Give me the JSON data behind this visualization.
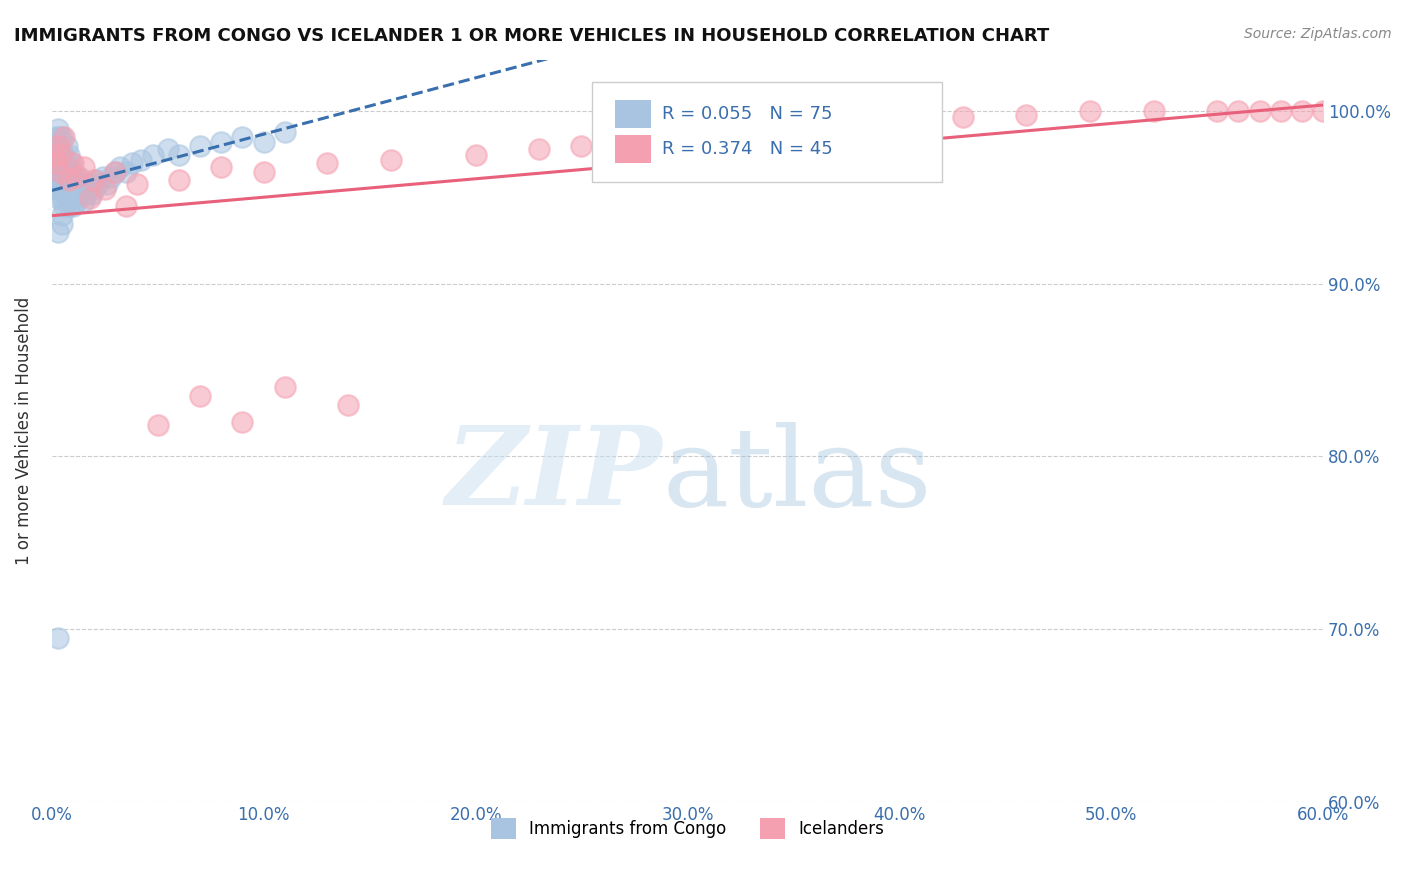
{
  "title": "IMMIGRANTS FROM CONGO VS ICELANDER 1 OR MORE VEHICLES IN HOUSEHOLD CORRELATION CHART",
  "source": "Source: ZipAtlas.com",
  "ylabel_label": "1 or more Vehicles in Household",
  "legend_labels": [
    "Immigrants from Congo",
    "Icelanders"
  ],
  "R_congo": 0.055,
  "N_congo": 75,
  "R_iceland": 0.374,
  "N_iceland": 45,
  "congo_color": "#a8c4e0",
  "iceland_color": "#f4a0b0",
  "congo_line_color": "#3a6fad",
  "iceland_line_color": "#e8607a",
  "xlim": [
    0.0,
    0.6
  ],
  "ylim": [
    0.6,
    1.03
  ],
  "congo_x": [
    0.001,
    0.001,
    0.001,
    0.002,
    0.002,
    0.002,
    0.002,
    0.003,
    0.003,
    0.003,
    0.003,
    0.003,
    0.004,
    0.004,
    0.004,
    0.004,
    0.005,
    0.005,
    0.005,
    0.005,
    0.005,
    0.005,
    0.006,
    0.006,
    0.006,
    0.006,
    0.007,
    0.007,
    0.007,
    0.007,
    0.008,
    0.008,
    0.008,
    0.008,
    0.009,
    0.009,
    0.009,
    0.01,
    0.01,
    0.01,
    0.011,
    0.011,
    0.012,
    0.012,
    0.013,
    0.013,
    0.014,
    0.015,
    0.015,
    0.016,
    0.017,
    0.018,
    0.019,
    0.02,
    0.021,
    0.022,
    0.024,
    0.026,
    0.028,
    0.03,
    0.032,
    0.035,
    0.038,
    0.042,
    0.048,
    0.055,
    0.06,
    0.07,
    0.08,
    0.09,
    0.1,
    0.11,
    0.005,
    0.003,
    0.003
  ],
  "congo_y": [
    0.96,
    0.975,
    0.98,
    0.955,
    0.965,
    0.97,
    0.985,
    0.95,
    0.96,
    0.975,
    0.98,
    0.99,
    0.955,
    0.965,
    0.975,
    0.985,
    0.94,
    0.95,
    0.96,
    0.97,
    0.975,
    0.985,
    0.945,
    0.955,
    0.965,
    0.975,
    0.95,
    0.96,
    0.97,
    0.98,
    0.945,
    0.955,
    0.965,
    0.975,
    0.95,
    0.96,
    0.97,
    0.945,
    0.955,
    0.965,
    0.95,
    0.96,
    0.948,
    0.958,
    0.952,
    0.962,
    0.955,
    0.948,
    0.958,
    0.952,
    0.955,
    0.958,
    0.952,
    0.955,
    0.96,
    0.958,
    0.962,
    0.958,
    0.962,
    0.965,
    0.968,
    0.965,
    0.97,
    0.972,
    0.975,
    0.978,
    0.975,
    0.98,
    0.982,
    0.985,
    0.982,
    0.988,
    0.935,
    0.93,
    0.695
  ],
  "iceland_x": [
    0.001,
    0.002,
    0.003,
    0.004,
    0.005,
    0.006,
    0.008,
    0.01,
    0.012,
    0.015,
    0.018,
    0.02,
    0.025,
    0.03,
    0.035,
    0.04,
    0.06,
    0.08,
    0.1,
    0.13,
    0.16,
    0.2,
    0.23,
    0.25,
    0.28,
    0.3,
    0.33,
    0.36,
    0.4,
    0.43,
    0.46,
    0.49,
    0.52,
    0.55,
    0.57,
    0.59,
    0.6,
    0.58,
    0.61,
    0.56,
    0.05,
    0.07,
    0.09,
    0.11,
    0.14
  ],
  "iceland_y": [
    0.975,
    0.97,
    0.98,
    0.965,
    0.975,
    0.985,
    0.96,
    0.97,
    0.962,
    0.968,
    0.95,
    0.96,
    0.955,
    0.965,
    0.945,
    0.958,
    0.96,
    0.968,
    0.965,
    0.97,
    0.972,
    0.975,
    0.978,
    0.98,
    0.985,
    0.988,
    0.99,
    0.992,
    0.995,
    0.997,
    0.998,
    1.0,
    1.0,
    1.0,
    1.0,
    1.0,
    1.0,
    1.0,
    1.0,
    1.0,
    0.818,
    0.835,
    0.82,
    0.84,
    0.83
  ]
}
